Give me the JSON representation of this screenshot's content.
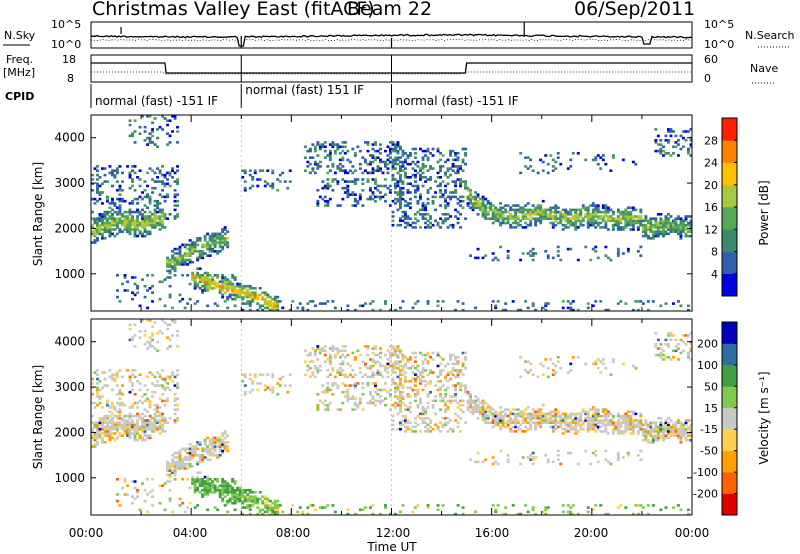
{
  "header": {
    "title": "Christmas Valley East (fitACF)",
    "beam": "Beam 22",
    "date": "06/Sep/2011"
  },
  "panels": {
    "nsky": {
      "left_label": "N.Sky",
      "right_label": "N.Search",
      "left_ticks": [
        "10^5",
        "10^0"
      ],
      "right_ticks": [
        "10^5",
        "10^0"
      ]
    },
    "freq": {
      "left_label_1": "Freq.",
      "left_label_2": "[MHz]",
      "right_label": "Nave",
      "left_ticks": [
        "18",
        "8"
      ],
      "right_ticks": [
        "60",
        "0"
      ]
    },
    "cpid": {
      "label": "CPID",
      "segments": [
        {
          "text": "normal (fast) -151 IF",
          "start_hour": 0,
          "end_hour": 6
        },
        {
          "text": "normal (fast) 151 IF",
          "start_hour": 6,
          "end_hour": 12
        },
        {
          "text": "normal (fast) -151 IF",
          "start_hour": 12,
          "end_hour": 24
        }
      ]
    }
  },
  "x_axis": {
    "label": "Time UT",
    "ticks": [
      "00:00",
      "04:00",
      "08:00",
      "12:00",
      "16:00",
      "20:00",
      "00:00"
    ]
  },
  "power_colorbar": {
    "label": "Power [dB]",
    "ticks": [
      "28",
      "24",
      "20",
      "16",
      "12",
      "8",
      "4"
    ]
  },
  "velocity_colorbar": {
    "label": "Velocity [m s⁻¹]",
    "ticks": [
      "200",
      "100",
      "50",
      "15",
      "-15",
      "-50",
      "-100",
      "-200"
    ]
  },
  "chart_data": [
    {
      "type": "heatmap",
      "name": "power",
      "ylabel": "Slant Range [km]",
      "xlabel": "",
      "x_range_hours": [
        0,
        24
      ],
      "y_range_km": [
        180,
        4500
      ],
      "yticks": [
        1000,
        2000,
        3000,
        4000
      ],
      "colorscale": [
        "#0000e0",
        "#2f5fa8",
        "#3d8a6a",
        "#55a855",
        "#a8c840",
        "#ffc000",
        "#ff8000",
        "#ff2000"
      ],
      "bands": [
        {
          "t": [
            0.0,
            0.5,
            1.0,
            1.5,
            2.0,
            2.5,
            3.0
          ],
          "r": [
            1950,
            2050,
            2150,
            2150,
            2100,
            2200,
            2250
          ],
          "width": 260,
          "intensity": 0.55
        },
        {
          "t": [
            3.0,
            3.5,
            4.0,
            4.5,
            5.0,
            5.5
          ],
          "r": [
            1250,
            1350,
            1500,
            1600,
            1700,
            1800
          ],
          "width": 220,
          "intensity": 0.5
        },
        {
          "t": [
            4.0,
            5.0,
            6.0,
            7.0,
            7.5
          ],
          "r": [
            950,
            750,
            600,
            400,
            250
          ],
          "width": 200,
          "intensity": 0.7
        },
        {
          "t": [
            15.0,
            15.5,
            16.0,
            17.0,
            18.0,
            19.0,
            20.0,
            21.0,
            22.0
          ],
          "r": [
            2800,
            2500,
            2350,
            2250,
            2350,
            2200,
            2300,
            2200,
            2250
          ],
          "width": 220,
          "intensity": 0.55
        },
        {
          "t": [
            22.0,
            23.0,
            24.0
          ],
          "r": [
            2000,
            2100,
            2000
          ],
          "width": 220,
          "intensity": 0.5
        }
      ],
      "clouds": [
        {
          "t0": 0.0,
          "t1": 3.5,
          "r0": 2200,
          "r1": 3400,
          "density": 0.25
        },
        {
          "t0": 1.5,
          "t1": 3.5,
          "r0": 3800,
          "r1": 4500,
          "density": 0.12
        },
        {
          "t0": 6.0,
          "t1": 8.0,
          "r0": 2800,
          "r1": 3300,
          "density": 0.2
        },
        {
          "t0": 8.5,
          "t1": 12.5,
          "r0": 3200,
          "r1": 3900,
          "density": 0.3
        },
        {
          "t0": 9.0,
          "t1": 12.5,
          "r0": 2500,
          "r1": 3100,
          "density": 0.25
        },
        {
          "t0": 12.0,
          "t1": 15.0,
          "r0": 2000,
          "r1": 3800,
          "density": 0.3
        },
        {
          "t0": 15.0,
          "t1": 22.0,
          "r0": 1300,
          "r1": 1600,
          "density": 0.12
        },
        {
          "t0": 17.0,
          "t1": 22.0,
          "r0": 3200,
          "r1": 3700,
          "density": 0.1
        },
        {
          "t0": 22.5,
          "t1": 24.0,
          "r0": 3600,
          "r1": 4200,
          "density": 0.25
        },
        {
          "t0": 1.0,
          "t1": 6.0,
          "r0": 250,
          "r1": 1000,
          "density": 0.1
        },
        {
          "t0": 6.0,
          "t1": 24.0,
          "r0": 180,
          "r1": 420,
          "density": 0.12
        }
      ]
    },
    {
      "type": "heatmap",
      "name": "velocity",
      "ylabel": "Slant Range [km]",
      "xlabel": "Time UT",
      "x_range_hours": [
        0,
        24
      ],
      "y_range_km": [
        180,
        4500
      ],
      "yticks": [
        1000,
        2000,
        3000,
        4000
      ],
      "colorscale": [
        "#e00000",
        "#ff6000",
        "#ffa000",
        "#ffcf50",
        "#c8c8c8",
        "#80c850",
        "#40a040",
        "#2f6f9f",
        "#0000c0"
      ]
    }
  ]
}
